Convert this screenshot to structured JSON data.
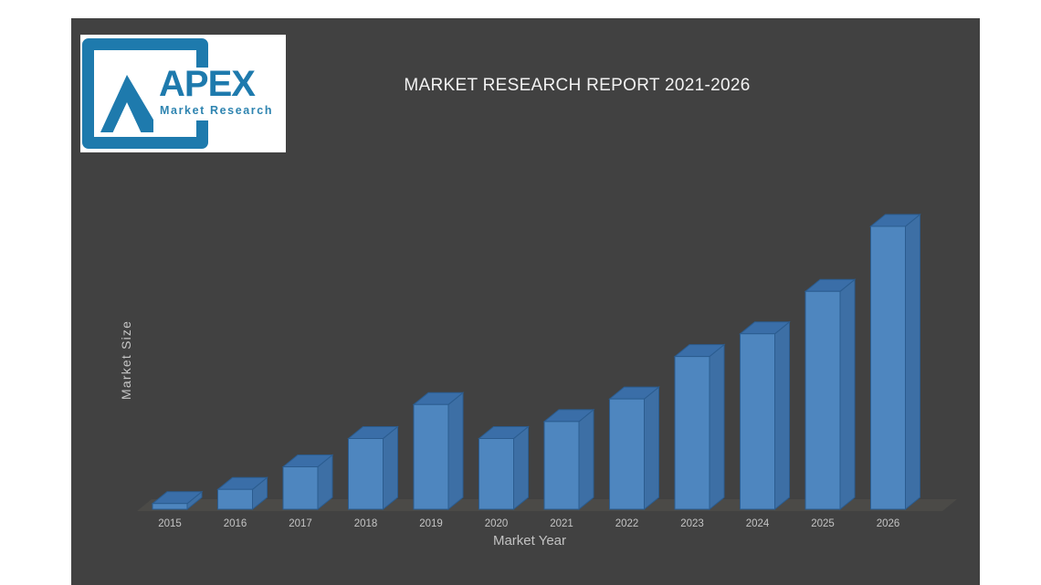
{
  "window": {
    "background": "#ffffff",
    "panel_background": "#414141"
  },
  "logo": {
    "brand": "APEX",
    "tagline": "Market Research",
    "brand_color": "#1e7aad",
    "box_background": "#ffffff"
  },
  "header": {
    "title": "MARKET RESEARCH REPORT 2021-2026",
    "color": "#f2f2f2"
  },
  "chart_data": {
    "type": "bar",
    "projection": "3d",
    "title": "MARKET RESEARCH REPORT 2021-2026",
    "xlabel": "Market Year",
    "ylabel": "Market Size",
    "categories": [
      "2015",
      "2016",
      "2017",
      "2018",
      "2019",
      "2020",
      "2021",
      "2022",
      "2023",
      "2024",
      "2025",
      "2026"
    ],
    "values": [
      2,
      7,
      15,
      25,
      37,
      25,
      31,
      39,
      54,
      62,
      77,
      100
    ],
    "value_scale": "relative-units (no y-axis tick labels shown in figure)",
    "ylim": [
      0,
      110
    ],
    "grid": false,
    "legend": false,
    "colors": {
      "bar_front": "#4e86bf",
      "bar_top": "#3a6ea8",
      "bar_side": "#3d6fa5",
      "bar_outline": "#2b5c8f",
      "floor": "#4b4a47",
      "axis_label": "#c6c6c6",
      "tick_label": "#c4c4c4"
    }
  }
}
